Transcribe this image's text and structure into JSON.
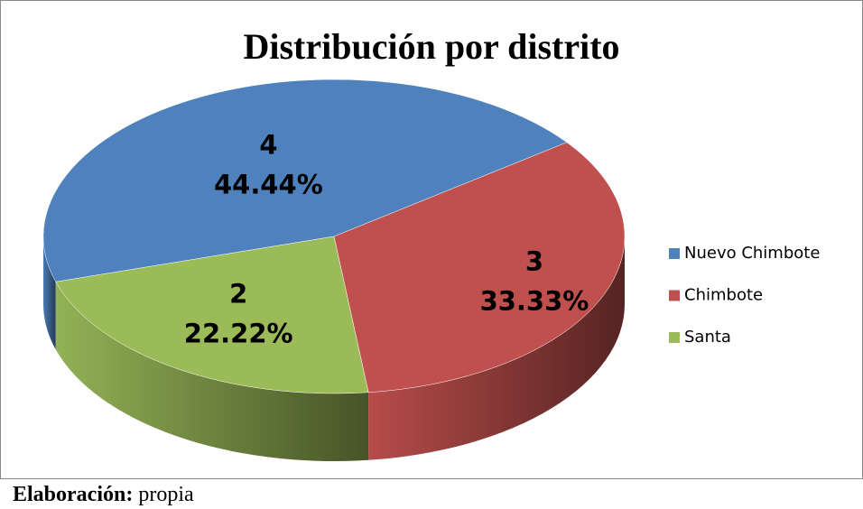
{
  "chart_data": {
    "type": "pie3d",
    "title": "Distribución por distrito",
    "categories": [
      "Nuevo Chimbote",
      "Chimbote",
      "Santa"
    ],
    "values": [
      4,
      3,
      2
    ],
    "percentages": [
      44.44,
      33.33,
      22.22
    ],
    "percentage_labels": [
      "44.44%",
      "33.33%",
      "22.22%"
    ],
    "colors": [
      "#4f81bd",
      "#c0504d",
      "#9bbb59"
    ],
    "legend": "right"
  },
  "footer": {
    "label": "Elaboración:",
    "text": "propia"
  }
}
